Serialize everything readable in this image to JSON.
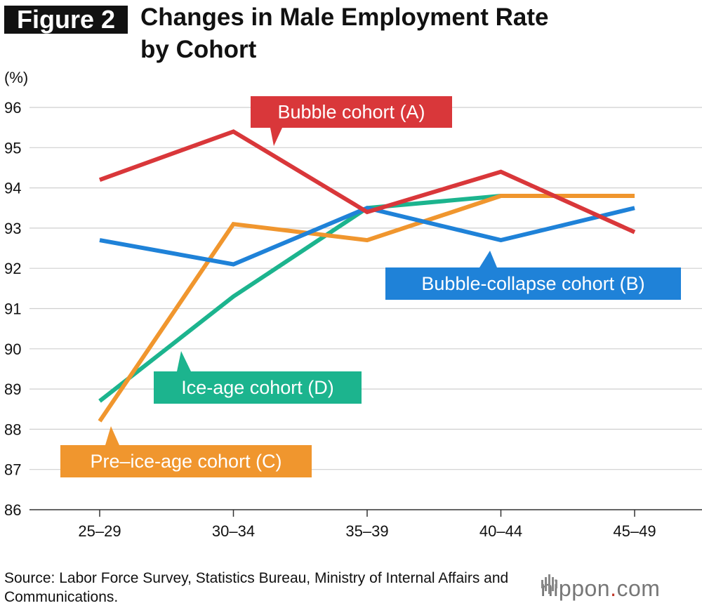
{
  "figure_label": "Figure 2",
  "unit_label": "(%)",
  "source_note": "Source: Labor Force Survey, Statistics Bureau, Ministry of Internal Affairs and Communications.",
  "logo": {
    "main": "nippon",
    "dot": ".",
    "suffix": "com"
  },
  "colors": {
    "A": "#d9373a",
    "B": "#1f82d8",
    "C": "#f0962e",
    "D": "#1cb48e"
  },
  "chart_data": {
    "type": "line",
    "title": "Changes in Male Employment Rate by Cohort",
    "title_lines": [
      "Changes in Male Employment Rate",
      "by Cohort"
    ],
    "xlabel": "",
    "ylabel": "(%)",
    "categories": [
      "25–29",
      "30–34",
      "35–39",
      "40–44",
      "45–49"
    ],
    "ylim": [
      86,
      96
    ],
    "yticks": [
      86,
      87,
      88,
      89,
      90,
      91,
      92,
      93,
      94,
      95,
      96
    ],
    "grid": true,
    "series": [
      {
        "key": "D",
        "name": "Ice-age cohort (D)",
        "values": [
          88.7,
          91.3,
          93.5,
          93.8,
          93.8
        ]
      },
      {
        "key": "C",
        "name": "Pre–ice-age cohort (C)",
        "values": [
          88.2,
          93.1,
          92.7,
          93.8,
          93.8
        ]
      },
      {
        "key": "B",
        "name": "Bubble-collapse cohort (B)",
        "values": [
          92.7,
          92.1,
          93.5,
          92.7,
          93.5
        ]
      },
      {
        "key": "A",
        "name": "Bubble cohort (A)",
        "values": [
          94.2,
          95.4,
          93.4,
          94.4,
          92.9
        ]
      }
    ]
  }
}
